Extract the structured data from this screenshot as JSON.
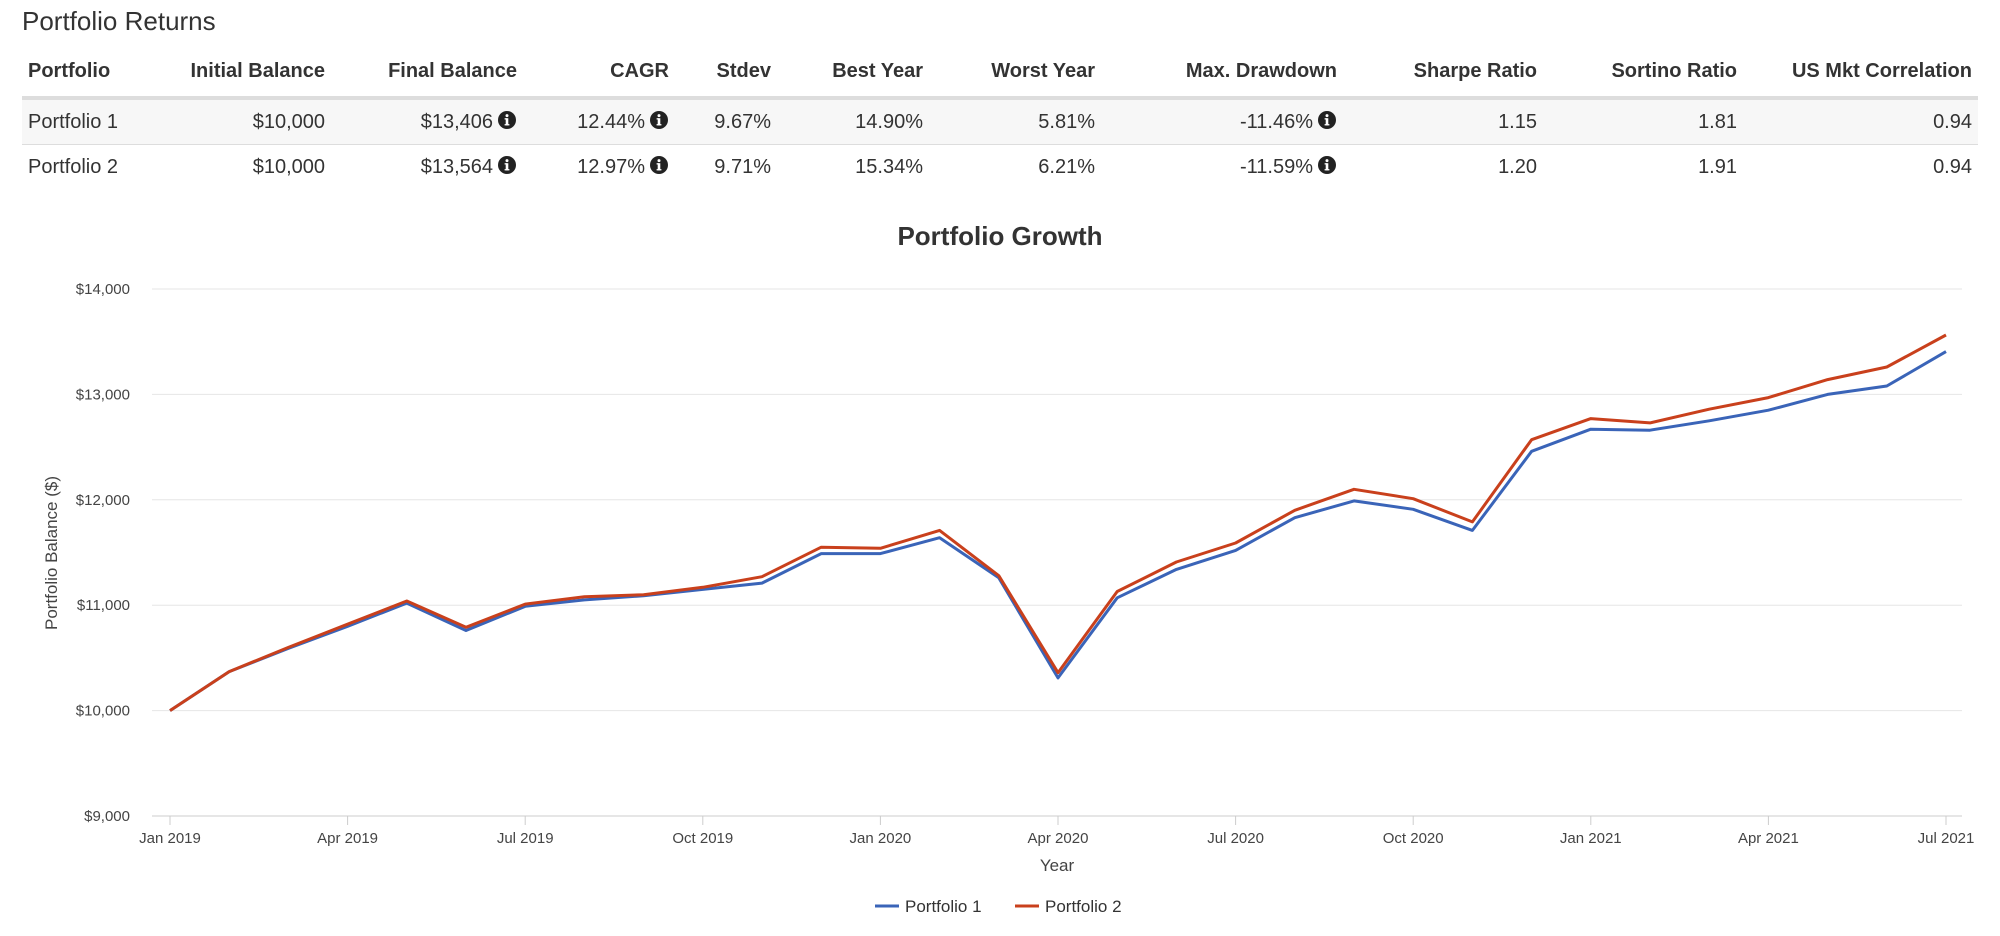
{
  "section_title": "Portfolio Returns",
  "table": {
    "columns": [
      "Portfolio",
      "Initial Balance",
      "Final Balance",
      "CAGR",
      "Stdev",
      "Best Year",
      "Worst Year",
      "Max. Drawdown",
      "Sharpe Ratio",
      "Sortino Ratio",
      "US Mkt Correlation"
    ],
    "rows": [
      [
        "Portfolio 1",
        "$10,000",
        "$13,406",
        "12.44%",
        "9.67%",
        "14.90%",
        "5.81%",
        "-11.46%",
        "1.15",
        "1.81",
        "0.94"
      ],
      [
        "Portfolio 2",
        "$10,000",
        "$13,564",
        "12.97%",
        "9.71%",
        "15.34%",
        "6.21%",
        "-11.59%",
        "1.20",
        "1.91",
        "0.94"
      ]
    ],
    "info_icon": "info-circle-icon"
  },
  "chart_data": {
    "type": "line",
    "title": "Portfolio Growth",
    "xlabel": "Year",
    "ylabel": "Portfolio Balance ($)",
    "ylim": [
      9000,
      14000
    ],
    "yticks": [
      9000,
      10000,
      11000,
      12000,
      13000,
      14000
    ],
    "ytick_labels": [
      "$9,000",
      "$10,000",
      "$11,000",
      "$12,000",
      "$13,000",
      "$14,000"
    ],
    "xtick_labels": [
      "Jan 2019",
      "Apr 2019",
      "Jul 2019",
      "Oct 2019",
      "Jan 2020",
      "Apr 2020",
      "Jul 2020",
      "Oct 2020",
      "Jan 2021",
      "Apr 2021",
      "Jul 2021"
    ],
    "xtick_positions": [
      0,
      3,
      6,
      9,
      12,
      15,
      18,
      21,
      24,
      27,
      30
    ],
    "x": [
      "Jan 2019",
      "Feb 2019",
      "Mar 2019",
      "Apr 2019",
      "May 2019",
      "Jun 2019",
      "Jul 2019",
      "Aug 2019",
      "Sep 2019",
      "Oct 2019",
      "Nov 2019",
      "Dec 2019",
      "Jan 2020",
      "Feb 2020",
      "Mar 2020",
      "Apr 2020",
      "May 2020",
      "Jun 2020",
      "Jul 2020",
      "Aug 2020",
      "Sep 2020",
      "Oct 2020",
      "Nov 2020",
      "Dec 2020",
      "Jan 2021",
      "Feb 2021",
      "Mar 2021",
      "Apr 2021",
      "May 2021",
      "Jun 2021",
      "Jul 2021"
    ],
    "series": [
      {
        "name": "Portfolio 1",
        "color": "#3a64b8",
        "values": [
          10000,
          10370,
          10590,
          10800,
          11020,
          10760,
          10990,
          11050,
          11090,
          11150,
          11210,
          11490,
          11490,
          11640,
          11260,
          10310,
          11070,
          11340,
          11520,
          11830,
          11990,
          11910,
          11710,
          12460,
          12670,
          12660,
          12750,
          12850,
          13000,
          13080,
          13406
        ]
      },
      {
        "name": "Portfolio 2",
        "color": "#c9401c",
        "values": [
          10000,
          10370,
          10600,
          10820,
          11040,
          10790,
          11010,
          11080,
          11100,
          11170,
          11270,
          11550,
          11540,
          11710,
          11280,
          10360,
          11130,
          11410,
          11590,
          11900,
          12100,
          12010,
          11790,
          12570,
          12770,
          12730,
          12860,
          12970,
          13140,
          13260,
          13564
        ]
      }
    ],
    "grid": true,
    "legend": "bottom-center"
  }
}
